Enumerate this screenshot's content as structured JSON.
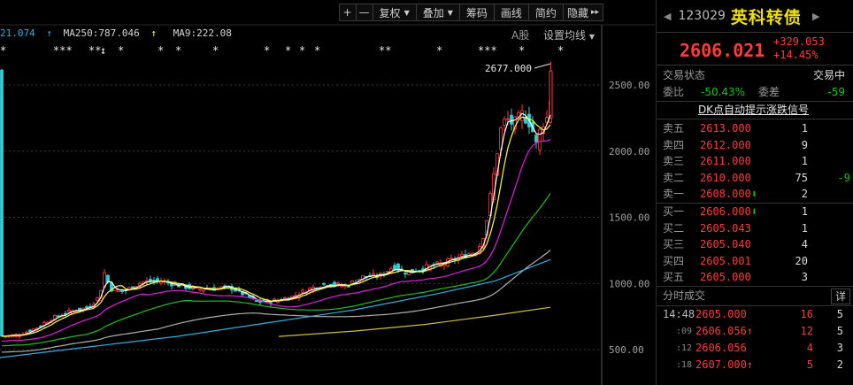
{
  "toolbar": {
    "plus": "+",
    "minus": "—",
    "fuquan": "复权",
    "diejia": "叠加",
    "chouma": "筹码",
    "huaxian": "画线",
    "jianyue": "简约",
    "yincang": "隐藏",
    "expand": "▸▸"
  },
  "ma": {
    "ma_a": "21.074",
    "ma250": "MA250:787.046",
    "ma9": "MA9:222.08"
  },
  "chart": {
    "share_label": "A股",
    "settings": "设置均线",
    "annotation": "2677.000",
    "yticks": [
      "2500.00",
      "2000.00",
      "1500.00",
      "1000.00",
      "500.00"
    ]
  },
  "stars": [
    "*",
    "***",
    "**",
    "↕",
    "*",
    "*",
    "*",
    "*",
    "*",
    "*",
    "*",
    "*",
    "**",
    "*",
    "***",
    "*",
    "*"
  ],
  "quote": {
    "code": "123029",
    "name": "英科转债",
    "price": "2606.021",
    "change": "+329.053",
    "pct": "+14.45%",
    "status_label": "交易状态",
    "status": "交易中",
    "weibi_label": "委比",
    "weibi": "-50.43%",
    "weicha_label": "委差",
    "weicha": "-59",
    "dk_link": "DK点自动提示涨跌信号"
  },
  "orderbook": {
    "asks": [
      {
        "label": "卖五",
        "price": "2613.000",
        "vol": "1",
        "delta": ""
      },
      {
        "label": "卖四",
        "price": "2612.000",
        "vol": "9",
        "delta": ""
      },
      {
        "label": "卖三",
        "price": "2611.000",
        "vol": "1",
        "delta": ""
      },
      {
        "label": "卖二",
        "price": "2610.000",
        "vol": "75",
        "delta": "-9"
      },
      {
        "label": "卖一",
        "price": "2608.000⬇",
        "vol": "2",
        "delta": ""
      }
    ],
    "bids": [
      {
        "label": "买一",
        "price": "2606.000⬇",
        "vol": "1",
        "delta": ""
      },
      {
        "label": "买二",
        "price": "2605.043",
        "vol": "1",
        "delta": ""
      },
      {
        "label": "买三",
        "price": "2605.040",
        "vol": "4",
        "delta": ""
      },
      {
        "label": "买四",
        "price": "2605.001",
        "vol": "20",
        "delta": ""
      },
      {
        "label": "买五",
        "price": "2605.000",
        "vol": "3",
        "delta": ""
      }
    ]
  },
  "trades": {
    "title": "分时成交",
    "detail": "详",
    "rows": [
      {
        "time": "14:48",
        "price": "2605.000",
        "vol": "16",
        "num": "5"
      },
      {
        "time": ":09",
        "price": "2606.056↑",
        "vol": "12",
        "num": "5"
      },
      {
        "time": ":12",
        "price": "2606.056",
        "vol": "4",
        "num": "3"
      },
      {
        "time": ":18",
        "price": "2607.000↑",
        "vol": "5",
        "num": "2"
      }
    ]
  },
  "colors": {
    "up": "#ff3c3c",
    "down": "#18c218",
    "ma_white": "#ffffff",
    "ma_yellow": "#ffff40",
    "ma_magenta": "#e020e0",
    "ma_green": "#20c020",
    "ma_gray": "#b0b0b0",
    "ma_cyan": "#30b0e0",
    "ma_gold": "#d0c030"
  }
}
